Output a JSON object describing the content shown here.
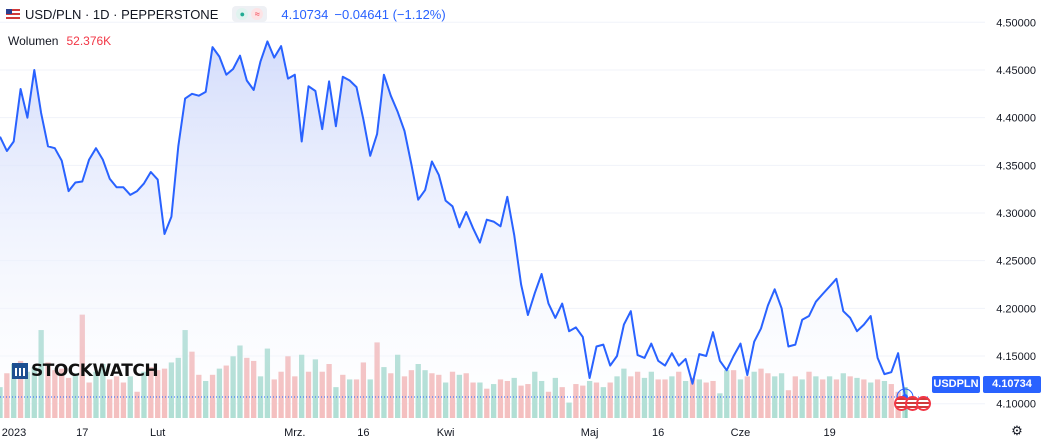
{
  "header": {
    "symbol_line": "USD/PLN · 1D · PEPPERSTONE",
    "price": "4.10734",
    "change": "−0.04641 (−1.12%)",
    "volume_label": "Wolumen",
    "volume_value": "52.376K",
    "chip_dot": "●",
    "chip_wave": "≈",
    "flag_icon": "us-flag-icon"
  },
  "watermark": {
    "text": "STOCKWATCH",
    "icon": "chart-bars-icon"
  },
  "price_axis": {
    "ticks": [
      "4.50000",
      "4.45000",
      "4.40000",
      "4.35000",
      "4.30000",
      "4.25000",
      "4.20000",
      "4.15000",
      "4.10000"
    ],
    "tick_values": [
      4.5,
      4.45,
      4.4,
      4.35,
      4.3,
      4.25,
      4.2,
      4.15,
      4.1
    ],
    "symbol_tag": "USDPLN",
    "last_price": "4.10734"
  },
  "time_axis": {
    "labels": [
      "2023",
      "17",
      "Lut",
      "Mrz.",
      "16",
      "Kwi",
      "Maj",
      "16",
      "Cze",
      "19"
    ],
    "label_index": [
      0,
      12,
      23,
      43,
      53,
      65,
      86,
      96,
      108,
      121
    ]
  },
  "colors": {
    "line": "#2962ff",
    "area_top": "#cfd9fb",
    "area_bottom": "#ffffff",
    "vol_up": "#8fd1c2",
    "vol_down": "#f0a4a4",
    "grid": "#f0f3fa",
    "axis_text": "#131722"
  },
  "settings_icon": "gear-icon",
  "events_icon": "us-flag-event-icon",
  "chart_data": {
    "type": "line",
    "x": "trading day index from 2023 start",
    "ylim": [
      4.085,
      4.515
    ],
    "close": [
      4.38,
      4.365,
      4.375,
      4.43,
      4.4,
      4.45,
      4.405,
      4.37,
      4.368,
      4.355,
      4.323,
      4.332,
      4.333,
      4.356,
      4.368,
      4.356,
      4.336,
      4.327,
      4.327,
      4.319,
      4.323,
      4.331,
      4.343,
      4.335,
      4.278,
      4.296,
      4.37,
      4.42,
      4.425,
      4.423,
      4.427,
      4.474,
      4.464,
      4.445,
      4.451,
      4.465,
      4.439,
      4.429,
      4.459,
      4.48,
      4.463,
      4.475,
      4.441,
      4.445,
      4.375,
      4.433,
      4.428,
      4.388,
      4.438,
      4.391,
      4.443,
      4.439,
      4.432,
      4.398,
      4.36,
      4.383,
      4.445,
      4.423,
      4.406,
      4.386,
      4.351,
      4.314,
      4.324,
      4.354,
      4.34,
      4.313,
      4.307,
      4.285,
      4.301,
      4.284,
      4.269,
      4.293,
      4.291,
      4.286,
      4.317,
      4.277,
      4.225,
      4.193,
      4.216,
      4.236,
      4.205,
      4.19,
      4.205,
      4.176,
      4.18,
      4.17,
      4.127,
      4.16,
      4.162,
      4.14,
      4.15,
      4.183,
      4.197,
      4.151,
      4.148,
      4.163,
      4.145,
      4.14,
      4.153,
      4.14,
      4.147,
      4.121,
      4.152,
      4.15,
      4.175,
      4.145,
      4.135,
      4.15,
      4.163,
      4.13,
      4.165,
      4.179,
      4.203,
      4.22,
      4.2,
      4.16,
      4.162,
      4.188,
      4.192,
      4.207,
      4.215,
      4.223,
      4.231,
      4.197,
      4.19,
      4.176,
      4.183,
      4.192,
      4.148,
      4.131,
      4.133,
      4.153,
      4.107
    ],
    "volume": [
      0.2,
      0.29,
      0.35,
      0.37,
      0.3,
      0.33,
      0.57,
      0.36,
      0.31,
      0.32,
      0.26,
      0.29,
      0.67,
      0.23,
      0.3,
      0.35,
      0.25,
      0.27,
      0.23,
      0.27,
      0.17,
      0.3,
      0.33,
      0.31,
      0.32,
      0.36,
      0.39,
      0.57,
      0.43,
      0.28,
      0.24,
      0.28,
      0.32,
      0.34,
      0.4,
      0.47,
      0.39,
      0.37,
      0.27,
      0.45,
      0.25,
      0.3,
      0.4,
      0.27,
      0.41,
      0.3,
      0.38,
      0.3,
      0.35,
      0.2,
      0.28,
      0.25,
      0.25,
      0.36,
      0.25,
      0.49,
      0.33,
      0.29,
      0.41,
      0.27,
      0.31,
      0.35,
      0.31,
      0.29,
      0.28,
      0.23,
      0.3,
      0.28,
      0.29,
      0.23,
      0.23,
      0.19,
      0.22,
      0.25,
      0.24,
      0.26,
      0.21,
      0.22,
      0.3,
      0.24,
      0.17,
      0.26,
      0.2,
      0.1,
      0.22,
      0.21,
      0.24,
      0.23,
      0.2,
      0.23,
      0.27,
      0.32,
      0.27,
      0.3,
      0.26,
      0.3,
      0.25,
      0.25,
      0.27,
      0.3,
      0.24,
      0.26,
      0.25,
      0.23,
      0.24,
      0.16,
      0.31,
      0.31,
      0.25,
      0.27,
      0.3,
      0.32,
      0.29,
      0.27,
      0.29,
      0.18,
      0.27,
      0.25,
      0.3,
      0.27,
      0.25,
      0.27,
      0.25,
      0.29,
      0.27,
      0.26,
      0.25,
      0.23,
      0.25,
      0.24,
      0.22,
      0.17,
      0.2
    ],
    "volume_up": [
      true,
      false,
      true,
      false,
      true,
      true,
      true,
      false,
      false,
      false,
      false,
      true,
      false,
      false,
      true,
      true,
      false,
      false,
      false,
      true,
      false,
      true,
      false,
      false,
      false,
      true,
      true,
      true,
      false,
      false,
      true,
      false,
      true,
      false,
      true,
      true,
      false,
      false,
      true,
      true,
      false,
      false,
      false,
      false,
      true,
      false,
      true,
      false,
      false,
      true,
      false,
      true,
      false,
      false,
      true,
      false,
      true,
      false,
      true,
      false,
      false,
      true,
      true,
      false,
      false,
      true,
      false,
      true,
      false,
      false,
      true,
      false,
      true,
      false,
      false,
      true,
      false,
      false,
      true,
      true,
      false,
      true,
      false,
      true,
      false,
      false,
      true,
      false,
      true,
      false,
      true,
      true,
      false,
      false,
      true,
      true,
      false,
      false,
      true,
      false,
      true,
      false,
      true,
      false,
      false,
      true,
      true,
      false,
      true,
      false,
      true,
      false,
      false,
      true,
      true,
      false,
      false,
      true,
      false,
      true,
      false,
      true,
      false,
      true,
      false,
      true,
      false,
      true,
      false,
      true,
      false,
      false,
      true
    ]
  }
}
